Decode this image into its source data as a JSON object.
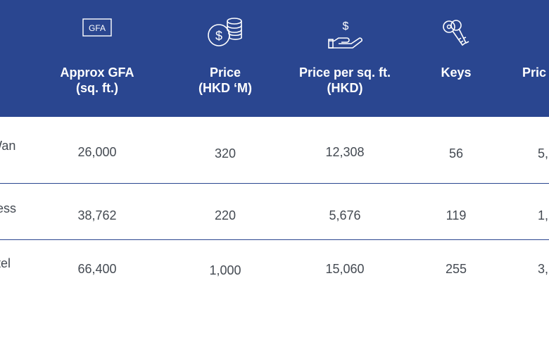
{
  "header": {
    "background_color": "#2a4690",
    "columns": [
      {
        "label": "Approx GFA\n(sq. ft.)",
        "icon": "gfa-icon",
        "icon_text": "GFA"
      },
      {
        "label": "Price\n(HKD ‘M)",
        "icon": "coins-icon"
      },
      {
        "label": "Price per sq. ft.\n(HKD)",
        "icon": "hand-dollar-icon",
        "icon_text": "$"
      },
      {
        "label": "Keys",
        "icon": "keys-icon"
      },
      {
        "label": "Pric",
        "icon": ""
      }
    ]
  },
  "rows": [
    {
      "name": "Wan",
      "gfa": "26,000",
      "price": "320",
      "ppsf": "12,308",
      "keys": "56",
      "last": "5,"
    },
    {
      "name": "cess\nk",
      "gfa": "38,762",
      "price": "220",
      "ppsf": "5,676",
      "keys": "119",
      "last": "1,"
    },
    {
      "name": "otel\nn",
      "gfa": "66,400",
      "price": "1,000",
      "ppsf": "15,060",
      "keys": "255",
      "last": "3,"
    }
  ]
}
